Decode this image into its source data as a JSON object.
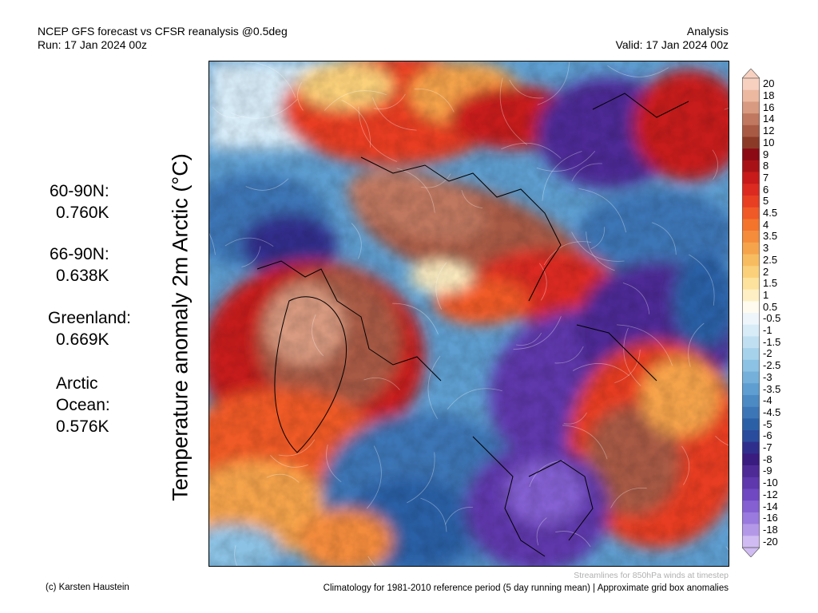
{
  "header": {
    "title": "NCEP GFS forecast vs CFSR reanalysis @0.5deg",
    "run": "Run: 17 Jan 2024 00z",
    "mode": "Analysis",
    "valid": "Valid: 17 Jan 2024 00z"
  },
  "map": {
    "ylabel": "Temperature anomaly 2m Arctic (°C)",
    "note": "Streamlines for 850hPa winds at timestep"
  },
  "stats": [
    {
      "label": "60-90N:",
      "value": "0.760K"
    },
    {
      "label": "66-90N:",
      "value": "0.638K"
    },
    {
      "label": "Greenland:",
      "value": "0.669K"
    },
    {
      "label": "Arctic",
      "label2": "Ocean:",
      "value": "0.576K"
    }
  ],
  "colorbar": {
    "ticks": [
      "20",
      "18",
      "16",
      "14",
      "12",
      "10",
      "9",
      "8",
      "7",
      "6",
      "5",
      "4.5",
      "4",
      "3.5",
      "3",
      "2.5",
      "2",
      "1.5",
      "1",
      "0.5",
      "-0.5",
      "-1",
      "-1.5",
      "-2",
      "-2.5",
      "-3",
      "-3.5",
      "-4",
      "-4.5",
      "-5",
      "-6",
      "-7",
      "-8",
      "-9",
      "-10",
      "-12",
      "-14",
      "-16",
      "-18",
      "-20"
    ],
    "colors": [
      "#f8d0c0",
      "#ecb8a0",
      "#d89a80",
      "#c07860",
      "#a85a44",
      "#8c3a28",
      "#8b0a14",
      "#a81216",
      "#c81a1a",
      "#dc2a20",
      "#e83e22",
      "#f05a26",
      "#f4742c",
      "#f48c3c",
      "#f6a44c",
      "#f8bc60",
      "#fad07a",
      "#fce29c",
      "#fef0c4",
      "#fffbee",
      "#eef6fc",
      "#d8ecf8",
      "#c0e0f2",
      "#a6d2ec",
      "#8cc2e4",
      "#74b0da",
      "#5e9ed0",
      "#4c8ac4",
      "#3c76b6",
      "#2c60a6",
      "#2a4c9c",
      "#302e8c",
      "#3a1c80",
      "#4e2a96",
      "#5e38ac",
      "#7048c2",
      "#8460d2",
      "#9a7ade",
      "#b498e8",
      "#d0bcf2"
    ]
  },
  "footer": {
    "credit": "(c) Karsten Haustein",
    "climatology": "Climatology for 1981-2010 reference period (5 day running mean) | Approximate grid box anomalies"
  }
}
